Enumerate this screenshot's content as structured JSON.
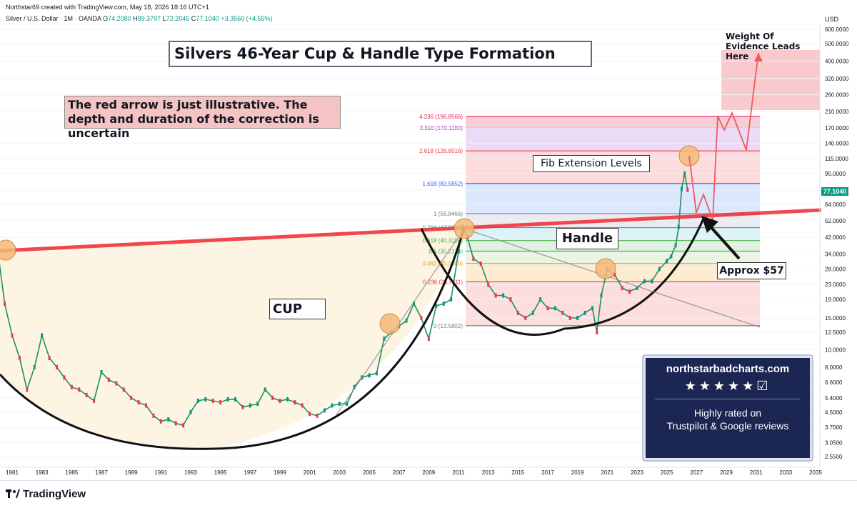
{
  "header": {
    "created_by": "Northstar69 created with TradingView.com, May 18, 2026 18:16 UTC+1",
    "symbol": "Silver / U.S. Dollar · 1M · OANDA",
    "o_label": "O",
    "o": "74.2080",
    "h_label": "H",
    "h": "89.3797",
    "l_label": "L",
    "l": "72.2045",
    "c_label": "C",
    "c": "77.1040",
    "change": "+3.3560 (+4.55%)"
  },
  "axis_unit": "USD",
  "last_price": "77.1040",
  "footer": {
    "brand": "TradingView"
  },
  "annotations": {
    "title": "Silvers 46-Year Cup & Handle Type Formation",
    "note": "The red arrow is just illustrative. The depth and duration of the correction is uncertain",
    "fib": "Fib Extension Levels",
    "handle": "Handle",
    "cup": "CUP",
    "approx": "Approx $57",
    "target": "Weight Of Evidence Leads Here"
  },
  "promo": {
    "site": "northstarbadcharts.com",
    "stars": "★★★★★☑",
    "rated_line1": "Highly rated on",
    "rated_line2": "Trustpilot & Google reviews"
  },
  "chart_data": {
    "type": "line",
    "title": "Silvers 46-Year Cup & Handle Type Formation",
    "y_scale": "log",
    "y_ticks": [
      "600.0000",
      "500.0000",
      "400.0000",
      "320.0000",
      "260.0000",
      "210.0000",
      "170.0000",
      "140.0000",
      "115.0000",
      "95.0000",
      "77.0000",
      "64.0000",
      "52.0000",
      "42.0000",
      "34.0000",
      "28.0000",
      "23.0000",
      "19.0000",
      "15.0000",
      "12.5000",
      "10.0000",
      "8.0000",
      "6.6000",
      "5.4000",
      "4.5000",
      "3.7000",
      "3.0500",
      "2.5500"
    ],
    "y_tick_values": [
      600,
      500,
      400,
      320,
      260,
      210,
      170,
      140,
      115,
      95,
      77,
      64,
      52,
      42,
      34,
      28,
      23,
      19,
      15,
      12.5,
      10,
      8,
      6.6,
      5.4,
      4.5,
      3.7,
      3.05,
      2.55
    ],
    "x_ticks": [
      "1981",
      "1983",
      "1985",
      "1987",
      "1989",
      "1991",
      "1993",
      "1995",
      "1997",
      "1999",
      "2001",
      "2003",
      "2005",
      "2007",
      "2009",
      "2011",
      "2013",
      "2015",
      "2017",
      "2019",
      "2021",
      "2023",
      "2025",
      "2027",
      "2029",
      "2031",
      "2033",
      "2035"
    ],
    "x_tick_values": [
      1981,
      1983,
      1985,
      1987,
      1989,
      1991,
      1993,
      1995,
      1997,
      1999,
      2001,
      2003,
      2005,
      2007,
      2009,
      2011,
      2013,
      2015,
      2017,
      2019,
      2021,
      2023,
      2025,
      2027,
      2029,
      2031,
      2033,
      2035
    ],
    "fib_levels": [
      {
        "label": "4.236 (196.8566)",
        "value": 196.8566,
        "color": "#e91e63"
      },
      {
        "label": "3.618 (170.1180)",
        "value": 170.118,
        "color": "#9c27b0"
      },
      {
        "label": "2.618 (126.8516)",
        "value": 126.8516,
        "color": "#f23645"
      },
      {
        "label": "1.618 (83.5852)",
        "value": 83.5852,
        "color": "#2962ff"
      },
      {
        "label": "1 (56.8466)",
        "value": 56.8466,
        "color": "#787b86"
      },
      {
        "label": "0.786 (47.5892)",
        "value": 47.5892,
        "color": "#00bcd4"
      },
      {
        "label": "0.618 (40.3188)",
        "value": 40.3188,
        "color": "#4caf50"
      },
      {
        "label": "0.5 (35.2134)",
        "value": 35.2134,
        "color": "#4caf50"
      },
      {
        "label": "0.382 (30.1080)",
        "value": 30.108,
        "color": "#ff9800"
      },
      {
        "label": "0.236 (23.7911)",
        "value": 23.7911,
        "color": "#f23645"
      },
      {
        "label": "0 (13.5802)",
        "value": 13.5802,
        "color": "#787b86"
      }
    ],
    "series": [
      {
        "x": [
          1980,
          1980.5,
          1981,
          1981.5,
          1982,
          1982.5,
          1983,
          1983.5,
          1984,
          1984.5,
          1985,
          1985.5,
          1986,
          1986.5,
          1987,
          1987.5,
          1988,
          1988.5,
          1989,
          1989.5,
          1990,
          1990.5,
          1991,
          1991.5,
          1992,
          1992.5,
          1993,
          1993.5,
          1994,
          1994.5,
          1995,
          1995.5,
          1996,
          1996.5,
          1997,
          1997.5,
          1998,
          1998.5,
          1999,
          1999.5,
          2000,
          2000.5,
          2001,
          2001.5,
          2002,
          2002.5,
          2003,
          2003.5,
          2004,
          2004.5,
          2005,
          2005.5,
          2006,
          2006.5,
          2007,
          2007.5,
          2008,
          2008.5,
          2009,
          2009.5,
          2010,
          2010.5,
          2011,
          2011.3,
          2011.6,
          2012,
          2012.5,
          2013,
          2013.5,
          2014,
          2014.5,
          2015,
          2015.5,
          2016,
          2016.5,
          2017,
          2017.5,
          2018,
          2018.5,
          2019,
          2019.5,
          2020,
          2020.3,
          2020.6,
          2021,
          2021.5,
          2022,
          2022.5,
          2023,
          2023.5,
          2024,
          2024.5,
          2025,
          2025.3,
          2025.6,
          2025.8,
          2026,
          2026.2,
          2026.4
        ],
        "values": [
          37,
          18,
          12,
          9,
          6,
          8,
          12,
          9,
          8,
          7,
          6.2,
          6,
          5.6,
          5.2,
          7.5,
          6.8,
          6.5,
          6,
          5.4,
          5.1,
          4.9,
          4.3,
          4.0,
          4.1,
          3.9,
          3.8,
          4.5,
          5.2,
          5.3,
          5.2,
          5.1,
          5.3,
          5.3,
          4.8,
          4.9,
          5.0,
          6.0,
          5.4,
          5.2,
          5.3,
          5.1,
          4.9,
          4.4,
          4.3,
          4.6,
          4.9,
          5.0,
          5.0,
          6.2,
          7.0,
          7.2,
          7.4,
          11.5,
          12.5,
          13.5,
          14.5,
          18,
          15,
          11.5,
          17.5,
          18,
          19,
          35,
          48,
          42,
          32,
          30,
          23,
          20,
          20,
          19,
          16,
          15,
          16,
          19,
          17,
          17,
          16,
          15,
          15,
          16,
          17,
          12.5,
          20,
          28,
          26,
          22,
          21,
          22,
          24,
          24,
          28,
          31,
          33,
          38,
          48,
          78,
          95,
          77
        ]
      }
    ],
    "xlabel": "",
    "ylabel": ""
  }
}
